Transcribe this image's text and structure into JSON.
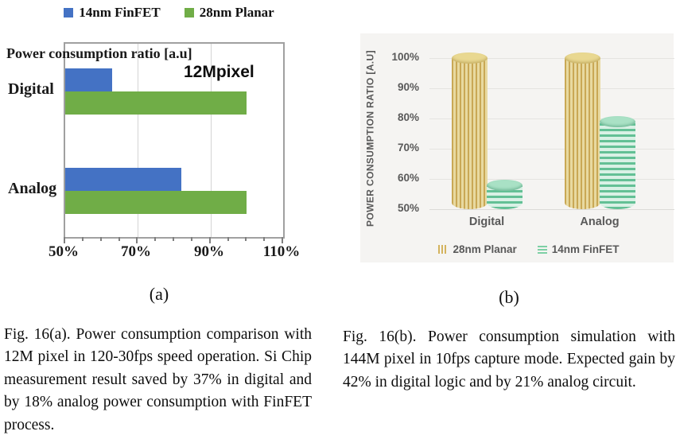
{
  "panel_a": {
    "legend": [
      {
        "label": "14nm FinFET",
        "color": "#4472C4"
      },
      {
        "label": "28nm Planar",
        "color": "#70AD47"
      }
    ],
    "title": "Power consumption ratio [a.u]",
    "annotation": "12Mpixel",
    "categories": [
      "Digital",
      "Analog"
    ],
    "x_tick_labels": [
      "50%",
      "70%",
      "90%",
      "110%"
    ],
    "sub_label": "(a)",
    "caption": "Fig. 16(a). Power consumption comparison with 12M pixel in 120-30fps speed operation. Si Chip measurement result saved by 37% in digital and by 18% analog power consumption with FinFET process."
  },
  "panel_b": {
    "ylabel": "POWER CONSUMPTION RATIO [A.U]",
    "y_tick_labels": [
      "100%",
      "90%",
      "80%",
      "70%",
      "60%",
      "50%"
    ],
    "categories": [
      "Digital",
      "Analog"
    ],
    "legend": [
      {
        "label": "28nm Planar",
        "color": "#D4B35E"
      },
      {
        "label": "14nm FinFET",
        "color": "#7ED0A5"
      }
    ],
    "sub_label": "(b)",
    "caption": "Fig. 16(b). Power consumption simulation with 144M pixel in 10fps capture mode. Expected gain by 42% in digital logic and by 21% analog circuit."
  },
  "chart_data": [
    {
      "type": "bar",
      "orientation": "horizontal",
      "title": "Power consumption ratio [a.u]",
      "annotation": "12Mpixel",
      "categories": [
        "Digital",
        "Analog"
      ],
      "series": [
        {
          "name": "14nm FinFET",
          "color": "#4472C4",
          "values": [
            63,
            82
          ]
        },
        {
          "name": "28nm Planar",
          "color": "#70AD47",
          "values": [
            100,
            100
          ]
        }
      ],
      "xlim": [
        50,
        110
      ],
      "x_ticks": [
        50,
        70,
        90,
        110
      ],
      "x_minor_tick_step": 5,
      "xlabel": "",
      "ylabel": "",
      "grid": true,
      "legend_position": "top"
    },
    {
      "type": "bar",
      "orientation": "vertical",
      "style": "cylinder-3d",
      "title": "",
      "xlabel": "",
      "ylabel": "POWER CONSUMPTION RATIO [A.U]",
      "categories": [
        "Digital",
        "Analog"
      ],
      "series": [
        {
          "name": "28nm Planar",
          "color": "#D4B35E",
          "values": [
            100,
            100
          ]
        },
        {
          "name": "14nm FinFET",
          "color": "#7ED0A5",
          "values": [
            58,
            79
          ]
        }
      ],
      "ylim": [
        50,
        100
      ],
      "y_ticks": [
        100,
        90,
        80,
        70,
        60,
        50
      ],
      "grid": true,
      "legend_position": "bottom"
    }
  ]
}
